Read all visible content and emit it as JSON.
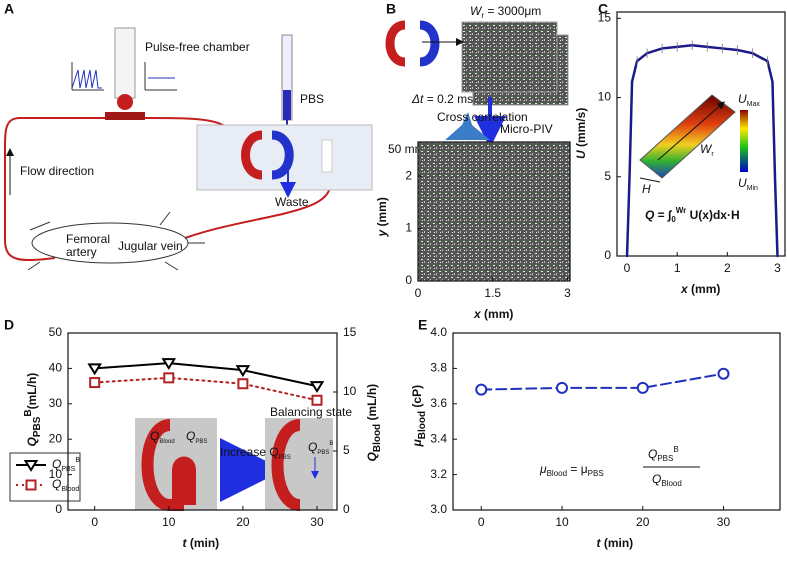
{
  "figure": {
    "panels": [
      "A",
      "B",
      "C",
      "D",
      "E"
    ],
    "A": {
      "chamber": "Pulse-free chamber",
      "pbs": "PBS",
      "flow": "Flow direction",
      "waste": "Waste",
      "femoral": "Femoral",
      "artery": "artery",
      "jugular": "Jugular vein"
    },
    "B": {
      "width": {
        "symbol": "W",
        "sub": "r",
        "unit": " = 3000μm"
      },
      "dt": {
        "symbol": "Δt",
        "unit": " = 0.2 ms"
      },
      "cross": "Cross correlation",
      "piv": "Micro-PIV",
      "scale": "50 mm/s"
    },
    "C": {
      "umax": {
        "symbol": "U",
        "sub": "Max"
      },
      "umin": {
        "symbol": "U",
        "sub": "Min"
      },
      "w": {
        "symbol": "W",
        "sub": "r"
      },
      "h": "H",
      "formula": {
        "symbol": "Q",
        "unit": " = ∫",
        "sub": "0",
        "sup": "Wr",
        "rest": " U(x)dx·H"
      }
    },
    "D": {
      "q_blood": {
        "symbol": "Q",
        "sub": "Blood"
      },
      "q_pbs": {
        "symbol": "Q",
        "sub": "PBS"
      },
      "increase": {
        "unit": "Increase Q",
        "sub": "PBS"
      },
      "balance": "Balancing state",
      "q_pbsb": {
        "symbol": "Q",
        "sub": "PBS",
        "sup": "B"
      }
    },
    "E": {
      "lhs": {
        "symbol": "μ",
        "sub": "Blood",
        "unit": " = μ",
        "sub2": "PBS"
      },
      "num": {
        "symbol": "Q",
        "sub": "PBS",
        "sup": "B"
      },
      "den": {
        "symbol": "Q",
        "sub": "Blood"
      }
    }
  },
  "chart_data": [
    {
      "type": "field",
      "xlabel": {
        "symbol": "x",
        "unit": " (mm)"
      },
      "ylabel": {
        "symbol": "y",
        "unit": " (mm)"
      },
      "xlim": [
        0,
        3.05
      ],
      "ylim": [
        0,
        2.65
      ],
      "xticks": [
        0,
        1.5,
        3
      ],
      "yticks": [
        0,
        1,
        2
      ]
    },
    {
      "type": "line",
      "xlabel": {
        "symbol": "x",
        "unit": " (mm)"
      },
      "ylabel": {
        "symbol": "U",
        "unit": " (mm/s)"
      },
      "xlim": [
        -0.2,
        3.15
      ],
      "ylim": [
        0,
        15.4
      ],
      "xticks": [
        0,
        1,
        2,
        3
      ],
      "yticks": [
        0,
        5,
        10,
        15
      ],
      "x": [
        0,
        0.05,
        0.1,
        0.2,
        0.4,
        0.7,
        1.0,
        1.3,
        1.6,
        1.9,
        2.2,
        2.5,
        2.8,
        2.9,
        2.95,
        3.0
      ],
      "series": [
        {
          "name": "U",
          "color": "#1a1a8c",
          "marker": "none",
          "dash": "solid",
          "values": [
            0,
            5,
            11,
            12.3,
            12.8,
            13.1,
            13.2,
            13.3,
            13.2,
            13.1,
            13.0,
            12.8,
            12.3,
            11,
            5,
            0
          ],
          "errors": [
            0,
            0,
            0,
            0.3,
            0.3,
            0.3,
            0.3,
            0.3,
            0.3,
            0.3,
            0.3,
            0.3,
            0.3,
            0,
            0,
            0
          ]
        }
      ]
    },
    {
      "type": "line",
      "xlabel": {
        "symbol": "t",
        "unit": " (min)"
      },
      "ylabel": {
        "symbol": "Q",
        "sub": "PBS",
        "sup": "B",
        "unit": "(mL/h)"
      },
      "y2label": {
        "symbol": "Q",
        "sub": "Blood",
        "unit": " (mL/h)"
      },
      "xlim": [
        -3.6,
        32.7
      ],
      "ylim": [
        0,
        50
      ],
      "y2lim": [
        0,
        15
      ],
      "xticks": [
        0,
        10,
        20,
        30
      ],
      "yticks": [
        0,
        10,
        20,
        30,
        40,
        50
      ],
      "y2ticks": [
        0,
        5,
        10,
        15
      ],
      "legend": "lower left",
      "x": [
        0,
        10,
        20,
        30
      ],
      "series": [
        {
          "name": {
            "symbol": "Q",
            "sub": "PBS",
            "sup": "B"
          },
          "color": "#000000",
          "marker": "triangle-down",
          "dash": "solid",
          "values": [
            40,
            41.5,
            39.5,
            35
          ]
        },
        {
          "name": {
            "symbol": "Q",
            "sub": "Blood"
          },
          "color": "#b22222",
          "marker": "square",
          "dash": "dotted",
          "axis": "y2",
          "values": [
            10.8,
            11.2,
            10.7,
            9.3
          ]
        }
      ]
    },
    {
      "type": "line",
      "xlabel": {
        "symbol": "t",
        "unit": " (min)"
      },
      "ylabel": {
        "symbol": "μ",
        "sub": "Blood",
        "unit": " (cP)"
      },
      "xlim": [
        -3.5,
        37
      ],
      "ylim": [
        3,
        4
      ],
      "xticks": [
        0,
        10,
        20,
        30
      ],
      "yticks": [
        {
          "value": 3,
          "label": "3.0"
        },
        {
          "value": 3.2,
          "label": "3.2"
        },
        {
          "value": 3.4,
          "label": "3.4"
        },
        {
          "value": 3.6,
          "label": "3.6"
        },
        {
          "value": 3.8,
          "label": "3.8"
        },
        {
          "value": 4,
          "label": "4.0"
        }
      ],
      "x": [
        0,
        10,
        20,
        30
      ],
      "series": [
        {
          "name": "μBlood",
          "color": "#1f2fbf",
          "marker": "circle",
          "dash": "dashed",
          "values": [
            3.68,
            3.69,
            3.69,
            3.77
          ]
        }
      ]
    }
  ]
}
